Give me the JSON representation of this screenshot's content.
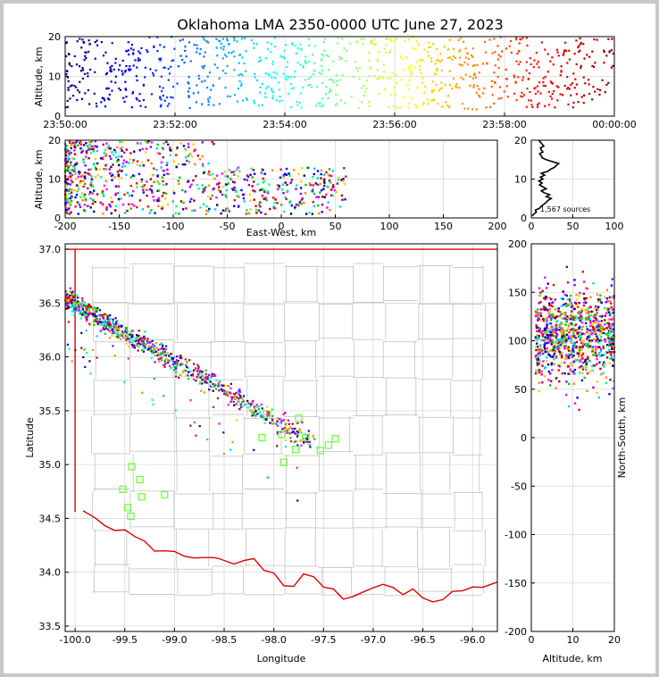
{
  "chart_data": [
    {
      "id": "time-height",
      "type": "scatter",
      "title": "Oklahoma LMA 2350-0000 UTC June 27, 2023",
      "xlabel": "",
      "ylabel": "Altitude, km",
      "xlim": [
        "23:50:00",
        "00:00:00"
      ],
      "ylim": [
        0,
        20
      ],
      "x_tick_labels": [
        "23:50:00",
        "23:52:00",
        "23:54:00",
        "23:56:00",
        "23:58:00",
        "00:00:00"
      ],
      "y_ticks": [
        0,
        10,
        20
      ],
      "color_by": "time",
      "grid": true
    },
    {
      "id": "ew-height",
      "type": "scatter",
      "xlabel": "East-West, km",
      "ylabel": "Altitude, km",
      "xlim": [
        -200,
        200
      ],
      "ylim": [
        0,
        20
      ],
      "x_ticks": [
        -200,
        -150,
        -100,
        -50,
        0,
        50,
        100,
        150,
        200
      ],
      "y_ticks": [
        0,
        10,
        20
      ],
      "grid": true
    },
    {
      "id": "height-histogram",
      "type": "line",
      "xlim": [
        0,
        100
      ],
      "ylim": [
        0,
        20
      ],
      "x_ticks": [
        0,
        50,
        100
      ],
      "y_ticks": [
        0,
        10,
        20
      ],
      "annotation": "1,567 sources",
      "profile": [
        [
          1,
          0.5
        ],
        [
          3,
          1.0
        ],
        [
          6,
          1.5
        ],
        [
          5,
          2.0
        ],
        [
          10,
          2.5
        ],
        [
          12,
          3.0
        ],
        [
          15,
          3.5
        ],
        [
          18,
          4.0
        ],
        [
          20,
          4.5
        ],
        [
          24,
          5.0
        ],
        [
          18,
          5.5
        ],
        [
          22,
          6.0
        ],
        [
          15,
          6.5
        ],
        [
          12,
          7.0
        ],
        [
          18,
          7.5
        ],
        [
          14,
          8.0
        ],
        [
          10,
          8.5
        ],
        [
          13,
          9.0
        ],
        [
          9,
          9.5
        ],
        [
          14,
          10.0
        ],
        [
          11,
          10.5
        ],
        [
          16,
          11.0
        ],
        [
          12,
          11.5
        ],
        [
          20,
          12.0
        ],
        [
          23,
          12.5
        ],
        [
          28,
          13.0
        ],
        [
          30,
          13.5
        ],
        [
          33,
          14.0
        ],
        [
          25,
          14.5
        ],
        [
          18,
          15.0
        ],
        [
          13,
          15.5
        ],
        [
          12,
          16.0
        ],
        [
          10,
          16.5
        ],
        [
          14,
          17.0
        ],
        [
          12,
          17.5
        ],
        [
          11,
          18.0
        ],
        [
          15,
          18.5
        ],
        [
          13,
          19.0
        ],
        [
          11,
          19.5
        ],
        [
          9,
          20.0
        ]
      ]
    },
    {
      "id": "plan-view",
      "type": "scatter",
      "xlabel": "Longitude",
      "ylabel": "Latitude",
      "xlim": [
        -100.1,
        -95.75
      ],
      "ylim": [
        33.45,
        37.05
      ],
      "x_ticks": [
        -100.0,
        -99.5,
        -99.0,
        -98.5,
        -98.0,
        -97.5,
        -97.0,
        -96.5,
        -96.0
      ],
      "y_ticks": [
        33.5,
        34.0,
        34.5,
        35.0,
        35.5,
        36.0,
        36.5,
        37.0
      ],
      "stations": [
        [
          -98.07,
          35.47
        ],
        [
          -97.92,
          35.28
        ],
        [
          -97.75,
          35.43
        ],
        [
          -98.12,
          35.25
        ],
        [
          -97.68,
          35.25
        ],
        [
          -97.38,
          35.24
        ],
        [
          -97.45,
          35.18
        ],
        [
          -97.53,
          35.13
        ],
        [
          -97.78,
          35.14
        ],
        [
          -97.9,
          35.02
        ],
        [
          -99.43,
          34.98
        ],
        [
          -99.35,
          34.86
        ],
        [
          -99.52,
          34.77
        ],
        [
          -99.33,
          34.7
        ],
        [
          -99.1,
          34.72
        ],
        [
          -99.47,
          34.6
        ],
        [
          -99.44,
          34.52
        ]
      ],
      "grid": true
    },
    {
      "id": "height-ns",
      "type": "scatter",
      "xlabel": "Altitude, km",
      "ylabel": "North-South, km",
      "xlim": [
        0,
        20
      ],
      "ylim": [
        -200,
        200
      ],
      "x_ticks": [
        0,
        10,
        20
      ],
      "y_ticks": [
        -200,
        -150,
        -100,
        -50,
        0,
        50,
        100,
        150,
        200
      ],
      "grid": true
    }
  ]
}
